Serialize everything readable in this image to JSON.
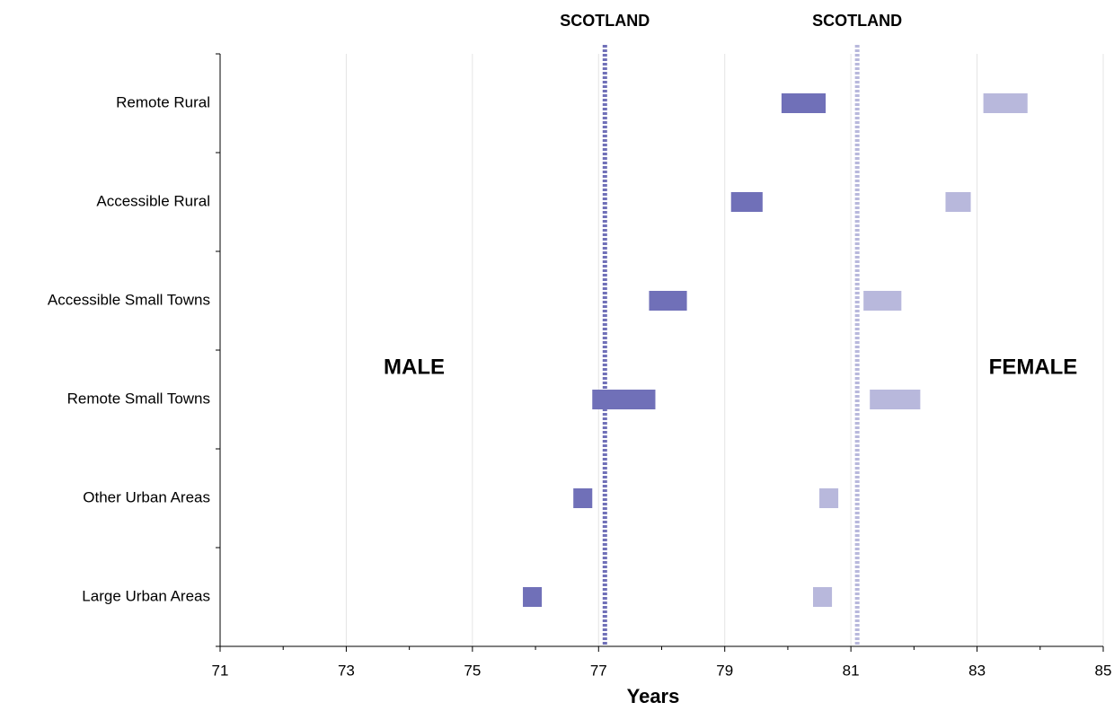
{
  "chart_data": {
    "type": "range-bar",
    "orientation": "horizontal",
    "x_label": "Years",
    "categories": [
      "Remote Rural",
      "Accessible Rural",
      "Accessible Small Towns",
      "Remote Small Towns",
      "Other Urban Areas",
      "Large Urban Areas"
    ],
    "series": [
      {
        "name": "MALE",
        "color": "#7070b8",
        "values": [
          [
            79.9,
            80.6
          ],
          [
            79.1,
            79.6
          ],
          [
            77.8,
            78.4
          ],
          [
            76.9,
            77.9
          ],
          [
            76.6,
            76.9
          ],
          [
            75.8,
            76.1
          ]
        ]
      },
      {
        "name": "FEMALE",
        "color": "#b8b8dc",
        "values": [
          [
            83.1,
            83.8
          ],
          [
            82.5,
            82.9
          ],
          [
            81.2,
            81.8
          ],
          [
            81.3,
            82.1
          ],
          [
            80.5,
            80.8
          ],
          [
            80.4,
            80.7
          ]
        ]
      }
    ],
    "reference_lines": [
      {
        "label": "SCOTLAND",
        "value": 77.1,
        "color": "#7070b8"
      },
      {
        "label": "SCOTLAND",
        "value": 81.1,
        "color": "#b8b8dc"
      }
    ],
    "xlim": [
      71,
      85
    ],
    "xticks": [
      71,
      73,
      75,
      77,
      79,
      81,
      83,
      85
    ],
    "xminorticks": [
      72,
      74,
      76,
      78,
      80,
      82,
      84
    ],
    "grid": true
  }
}
